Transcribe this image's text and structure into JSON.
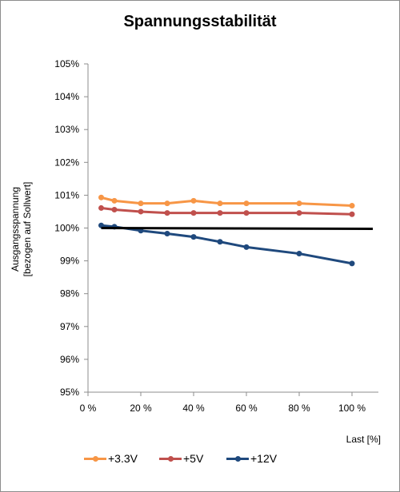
{
  "chart_data": {
    "type": "line",
    "title": "Spannungsstabilität",
    "ylabel_line1": "Ausgangsspannung",
    "ylabel_line2": "[bezogen auf Sollwert]",
    "xlabel": "Last [%]",
    "xlim": [
      0,
      110
    ],
    "ylim": [
      95,
      105
    ],
    "x_ticks": [
      0,
      20,
      40,
      60,
      80,
      100
    ],
    "x_tick_labels": [
      "0 %",
      "20 %",
      "40 %",
      "60 %",
      "80 %",
      "100 %"
    ],
    "y_ticks": [
      95,
      96,
      97,
      98,
      99,
      100,
      101,
      102,
      103,
      104,
      105
    ],
    "y_tick_labels": [
      "95%",
      "96%",
      "97%",
      "98%",
      "99%",
      "100%",
      "101%",
      "102%",
      "103%",
      "104%",
      "105%"
    ],
    "x": [
      5,
      10,
      20,
      30,
      40,
      50,
      60,
      80,
      100
    ],
    "reference_line": {
      "y": 100,
      "color": "#000000"
    },
    "series": [
      {
        "name": "+3.3V",
        "color": "#f79646",
        "values": [
          100.93,
          100.83,
          100.75,
          100.75,
          100.83,
          100.75,
          100.75,
          100.75,
          100.68
        ]
      },
      {
        "name": "+5V",
        "color": "#c0504d",
        "values": [
          100.61,
          100.56,
          100.5,
          100.46,
          100.46,
          100.46,
          100.46,
          100.46,
          100.42
        ]
      },
      {
        "name": "+12V",
        "color": "#1f497d",
        "values": [
          100.08,
          100.04,
          99.92,
          99.83,
          99.73,
          99.58,
          99.42,
          99.22,
          98.92
        ]
      }
    ],
    "grid": {
      "horizontal": false,
      "vertical": false
    },
    "legend_position": "bottom"
  }
}
